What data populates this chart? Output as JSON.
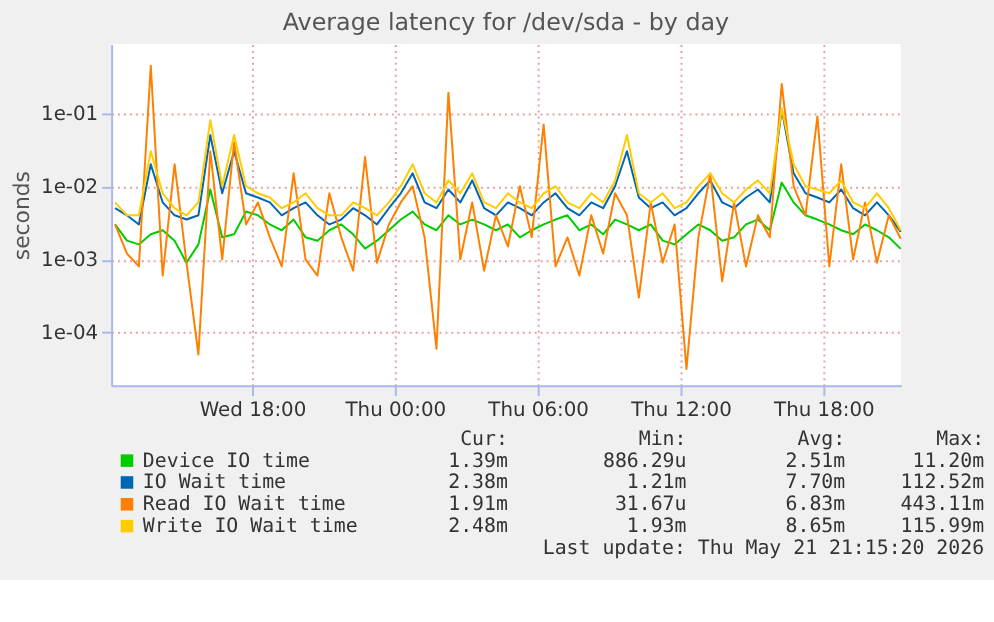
{
  "chart_data": {
    "type": "line",
    "title": "Average latency for /dev/sda - by day",
    "ylabel": "seconds",
    "x": [
      "2026-05-20T12:15",
      "2026-05-20T12:45",
      "2026-05-20T13:15",
      "2026-05-20T13:45",
      "2026-05-20T14:15",
      "2026-05-20T14:45",
      "2026-05-20T15:15",
      "2026-05-20T15:45",
      "2026-05-20T16:15",
      "2026-05-20T16:45",
      "2026-05-20T17:15",
      "2026-05-20T17:45",
      "2026-05-20T18:15",
      "2026-05-20T18:45",
      "2026-05-20T19:15",
      "2026-05-20T19:45",
      "2026-05-20T20:15",
      "2026-05-20T20:45",
      "2026-05-20T21:15",
      "2026-05-20T21:45",
      "2026-05-20T22:15",
      "2026-05-20T22:45",
      "2026-05-20T23:15",
      "2026-05-20T23:45",
      "2026-05-21T00:15",
      "2026-05-21T00:45",
      "2026-05-21T01:15",
      "2026-05-21T01:45",
      "2026-05-21T02:15",
      "2026-05-21T02:45",
      "2026-05-21T03:15",
      "2026-05-21T03:45",
      "2026-05-21T04:15",
      "2026-05-21T04:45",
      "2026-05-21T05:15",
      "2026-05-21T05:45",
      "2026-05-21T06:15",
      "2026-05-21T06:45",
      "2026-05-21T07:15",
      "2026-05-21T07:45",
      "2026-05-21T08:15",
      "2026-05-21T08:45",
      "2026-05-21T09:15",
      "2026-05-21T09:45",
      "2026-05-21T10:15",
      "2026-05-21T10:45",
      "2026-05-21T11:15",
      "2026-05-21T11:45",
      "2026-05-21T12:15",
      "2026-05-21T12:45",
      "2026-05-21T13:15",
      "2026-05-21T13:45",
      "2026-05-21T14:15",
      "2026-05-21T14:45",
      "2026-05-21T15:15",
      "2026-05-21T15:45",
      "2026-05-21T16:15",
      "2026-05-21T16:45",
      "2026-05-21T17:15",
      "2026-05-21T17:45",
      "2026-05-21T18:15",
      "2026-05-21T18:45",
      "2026-05-21T19:15",
      "2026-05-21T19:45",
      "2026-05-21T20:15",
      "2026-05-21T20:45",
      "2026-05-21T21:15"
    ],
    "series": [
      {
        "name": "Device IO time",
        "color": "#00cc00",
        "values": [
          0.003,
          0.0018,
          0.0016,
          0.0022,
          0.0025,
          0.0018,
          0.0009,
          0.0016,
          0.009,
          0.002,
          0.0022,
          0.0045,
          0.004,
          0.003,
          0.0025,
          0.0035,
          0.002,
          0.0018,
          0.0025,
          0.003,
          0.0022,
          0.0014,
          0.0018,
          0.0025,
          0.0035,
          0.0045,
          0.003,
          0.0025,
          0.004,
          0.003,
          0.0035,
          0.003,
          0.0025,
          0.003,
          0.002,
          0.0025,
          0.003,
          0.0035,
          0.004,
          0.0025,
          0.003,
          0.0022,
          0.0035,
          0.003,
          0.0025,
          0.003,
          0.0018,
          0.0016,
          0.0022,
          0.003,
          0.0025,
          0.0018,
          0.002,
          0.003,
          0.0035,
          0.0025,
          0.0112,
          0.006,
          0.004,
          0.0035,
          0.003,
          0.0025,
          0.0022,
          0.003,
          0.0025,
          0.002,
          0.00139
        ]
      },
      {
        "name": "IO Wait time",
        "color": "#0066b3",
        "values": [
          0.005,
          0.004,
          0.003,
          0.02,
          0.006,
          0.004,
          0.0035,
          0.004,
          0.05,
          0.008,
          0.03,
          0.008,
          0.007,
          0.006,
          0.004,
          0.005,
          0.006,
          0.004,
          0.003,
          0.0035,
          0.005,
          0.004,
          0.003,
          0.005,
          0.008,
          0.015,
          0.006,
          0.005,
          0.009,
          0.006,
          0.012,
          0.005,
          0.004,
          0.006,
          0.005,
          0.004,
          0.006,
          0.008,
          0.005,
          0.004,
          0.006,
          0.005,
          0.01,
          0.03,
          0.007,
          0.005,
          0.006,
          0.004,
          0.005,
          0.008,
          0.012,
          0.006,
          0.005,
          0.007,
          0.009,
          0.006,
          0.1125,
          0.015,
          0.008,
          0.007,
          0.006,
          0.009,
          0.005,
          0.004,
          0.006,
          0.004,
          0.00238
        ]
      },
      {
        "name": "Read IO Wait time",
        "color": "#ff8000",
        "values": [
          0.003,
          0.0012,
          0.0008,
          0.443,
          0.0006,
          0.02,
          0.0009,
          5e-05,
          0.03,
          0.001,
          0.04,
          0.003,
          0.006,
          0.002,
          0.0008,
          0.015,
          0.001,
          0.0006,
          0.008,
          0.002,
          0.0007,
          0.025,
          0.0009,
          0.003,
          0.006,
          0.01,
          0.002,
          6e-05,
          0.19,
          0.001,
          0.006,
          0.0007,
          0.004,
          0.0015,
          0.01,
          0.002,
          0.07,
          0.0008,
          0.002,
          0.0006,
          0.004,
          0.0012,
          0.008,
          0.004,
          0.0003,
          0.006,
          0.0009,
          0.003,
          3.17e-05,
          0.002,
          0.015,
          0.0005,
          0.006,
          0.0008,
          0.004,
          0.002,
          0.25,
          0.01,
          0.004,
          0.09,
          0.0008,
          0.02,
          0.001,
          0.006,
          0.0009,
          0.004,
          0.00191
        ]
      },
      {
        "name": "Write IO Wait time",
        "color": "#ffcc00",
        "values": [
          0.006,
          0.004,
          0.004,
          0.03,
          0.008,
          0.005,
          0.004,
          0.006,
          0.08,
          0.01,
          0.05,
          0.01,
          0.008,
          0.007,
          0.005,
          0.006,
          0.008,
          0.005,
          0.004,
          0.004,
          0.006,
          0.005,
          0.004,
          0.006,
          0.01,
          0.02,
          0.008,
          0.006,
          0.012,
          0.008,
          0.015,
          0.006,
          0.005,
          0.008,
          0.006,
          0.005,
          0.008,
          0.01,
          0.006,
          0.005,
          0.008,
          0.006,
          0.012,
          0.05,
          0.008,
          0.006,
          0.008,
          0.005,
          0.006,
          0.01,
          0.015,
          0.008,
          0.006,
          0.009,
          0.012,
          0.008,
          0.116,
          0.02,
          0.01,
          0.009,
          0.008,
          0.012,
          0.006,
          0.005,
          0.008,
          0.005,
          0.00248
        ]
      }
    ],
    "xlim": [
      "2026-05-20T12:05",
      "2026-05-21T21:15"
    ],
    "xticks": [
      {
        "value": "2026-05-20T18:00",
        "label": "Wed 18:00"
      },
      {
        "value": "2026-05-21T00:00",
        "label": "Thu 00:00"
      },
      {
        "value": "2026-05-21T06:00",
        "label": "Thu 06:00"
      },
      {
        "value": "2026-05-21T12:00",
        "label": "Thu 12:00"
      },
      {
        "value": "2026-05-21T18:00",
        "label": "Thu 18:00"
      }
    ],
    "ylim": [
      1.9e-05,
      0.88
    ],
    "yticks": [
      {
        "value": 0.0001,
        "label": "1e-04"
      },
      {
        "value": 0.001,
        "label": "1e-03"
      },
      {
        "value": 0.01,
        "label": "1e-02"
      },
      {
        "value": 0.1,
        "label": "1e-01"
      }
    ],
    "log": true,
    "grid": true,
    "legend": "bottom",
    "marker": "none",
    "line_style": "solid",
    "annotations": [
      "Cur:",
      "Min:",
      "Avg:",
      "Max:",
      "1.39m",
      "886.29u",
      "2.51m",
      "11.20m",
      "2.38m",
      "1.21m",
      "7.70m",
      "112.52m",
      "1.91m",
      "31.67u",
      "6.83m",
      "443.11m",
      "2.48m",
      "1.93m",
      "8.65m",
      "115.99m",
      "Last update: Thu May 21 21:15:20 2026"
    ]
  }
}
